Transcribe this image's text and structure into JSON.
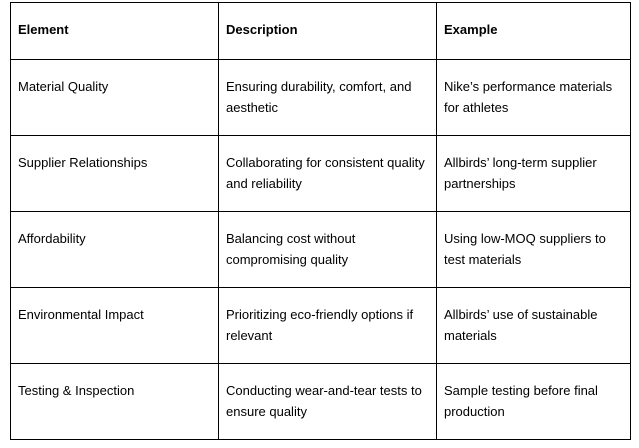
{
  "colors": {
    "background": "#ffffff",
    "text": "#000000",
    "border": "#000000"
  },
  "table": {
    "columns": [
      {
        "label": "Element"
      },
      {
        "label": "Description"
      },
      {
        "label": "Example"
      }
    ],
    "rows": [
      {
        "element": "Material Quality",
        "description": "Ensuring durability, comfort, and aesthetic",
        "example": "Nike’s performance materials for athletes"
      },
      {
        "element": "Supplier Relationships",
        "description": "Collaborating for consistent quality and reliability",
        "example": "Allbirds’ long-term supplier partnerships"
      },
      {
        "element": "Affordability",
        "description": "Balancing cost without compromising quality",
        "example": "Using low-MOQ suppliers to test materials"
      },
      {
        "element": "Environmental Impact",
        "description": "Prioritizing eco-friendly options if relevant",
        "example": "Allbirds’ use of sustainable materials"
      },
      {
        "element": "Testing & Inspection",
        "description": "Conducting wear-and-tear tests to ensure quality",
        "example": "Sample testing before final production"
      }
    ]
  }
}
